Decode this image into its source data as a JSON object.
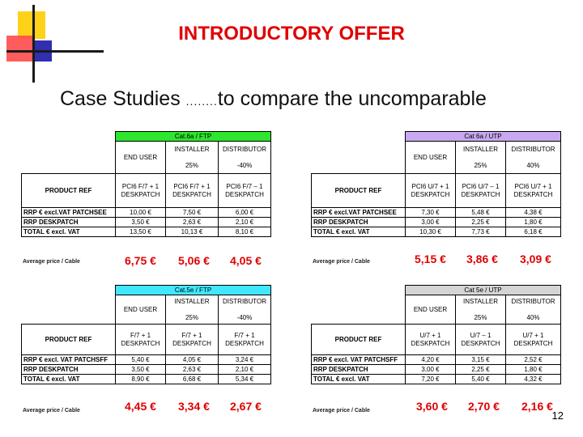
{
  "header": {
    "title": "INTRODUCTORY OFFER",
    "subtitle_main": "Case Studies",
    "subtitle_dots": "........",
    "subtitle_rest": "to compare the uncomparable"
  },
  "labels": {
    "end_user": "END USER",
    "installer": "INSTALLER",
    "distributor": "DISTRIBUTOR",
    "product_ref": "PRODUCT REF",
    "rrp_patchsee": "RRP € excl.VAT PATCHSEE",
    "rrp_patchsff": "RRP € excl. VAT PATCHSFF",
    "rrp_deskpatch": "RRP DESKPATCH",
    "total": "TOTAL € excl. VAT",
    "avg_price": "Average price / Cable",
    "deskpatch": "DESKPATCH"
  },
  "tables": [
    {
      "category": "Cat.6a / FTP",
      "installer_pct": "25%",
      "distributor_pct": "-40%",
      "products": [
        "PCI6 F/7 + 1",
        "PCI6 F/7 + 1",
        "PCI6 F/7 – 1"
      ],
      "rrp_row": [
        "10,00 €",
        "7,50 €",
        "6,00 €"
      ],
      "desk_row": [
        "3,50 €",
        "2,63 €",
        "2,10 €"
      ],
      "total_row": [
        "13,50 €",
        "10,13 €",
        "8,10 €"
      ],
      "avg": [
        "6,75 €",
        "5,06 €",
        "4,05 €"
      ]
    },
    {
      "category": "Cat 6a / UTP",
      "installer_pct": "25%",
      "distributor_pct": "40%",
      "products": [
        "PCI6 U/7 + 1",
        "PCI6 U/7 – 1",
        "PCI6 U/7 + 1"
      ],
      "rrp_row": [
        "7,30 €",
        "5,48 €",
        "4,38 €"
      ],
      "desk_row": [
        "3,00 €",
        "2,25 €",
        "1,80 €"
      ],
      "total_row": [
        "10,30 €",
        "7,73 €",
        "6,18 €"
      ],
      "avg": [
        "5,15 €",
        "3,86 €",
        "3,09 €"
      ]
    },
    {
      "category": "Cat.5e / FTP",
      "installer_pct": "25%",
      "distributor_pct": "-40%",
      "products": [
        "F/7 + 1",
        "F/7 + 1",
        "F/7 + 1"
      ],
      "rrp_row": [
        "5,40 €",
        "4,05 €",
        "3,24 €"
      ],
      "desk_row": [
        "3,50 €",
        "2,63 €",
        "2,10 €"
      ],
      "total_row": [
        "8,90 €",
        "6,68 €",
        "5,34 €"
      ],
      "avg": [
        "4,45 €",
        "3,34 €",
        "2,67 €"
      ]
    },
    {
      "category": "Cat 5e / UTP",
      "installer_pct": "25%",
      "distributor_pct": "40%",
      "products": [
        "U/7 + 1",
        "U/7 – 1",
        "U/7 + 1"
      ],
      "rrp_row": [
        "4,20 €",
        "3,15 €",
        "2,52 €"
      ],
      "desk_row": [
        "3,00 €",
        "2,25 €",
        "1,80 €"
      ],
      "total_row": [
        "7,20 €",
        "5,40 €",
        "4,32 €"
      ],
      "avg": [
        "3,60 €",
        "2,70 €",
        "2,16 €"
      ]
    }
  ],
  "page_number": "12",
  "colors": {
    "title_red": "#e00000",
    "band_green": "#2ee62e",
    "band_purple": "#c8a8f0",
    "band_cyan": "#40e8ff",
    "band_gray": "#d4d4d4"
  }
}
